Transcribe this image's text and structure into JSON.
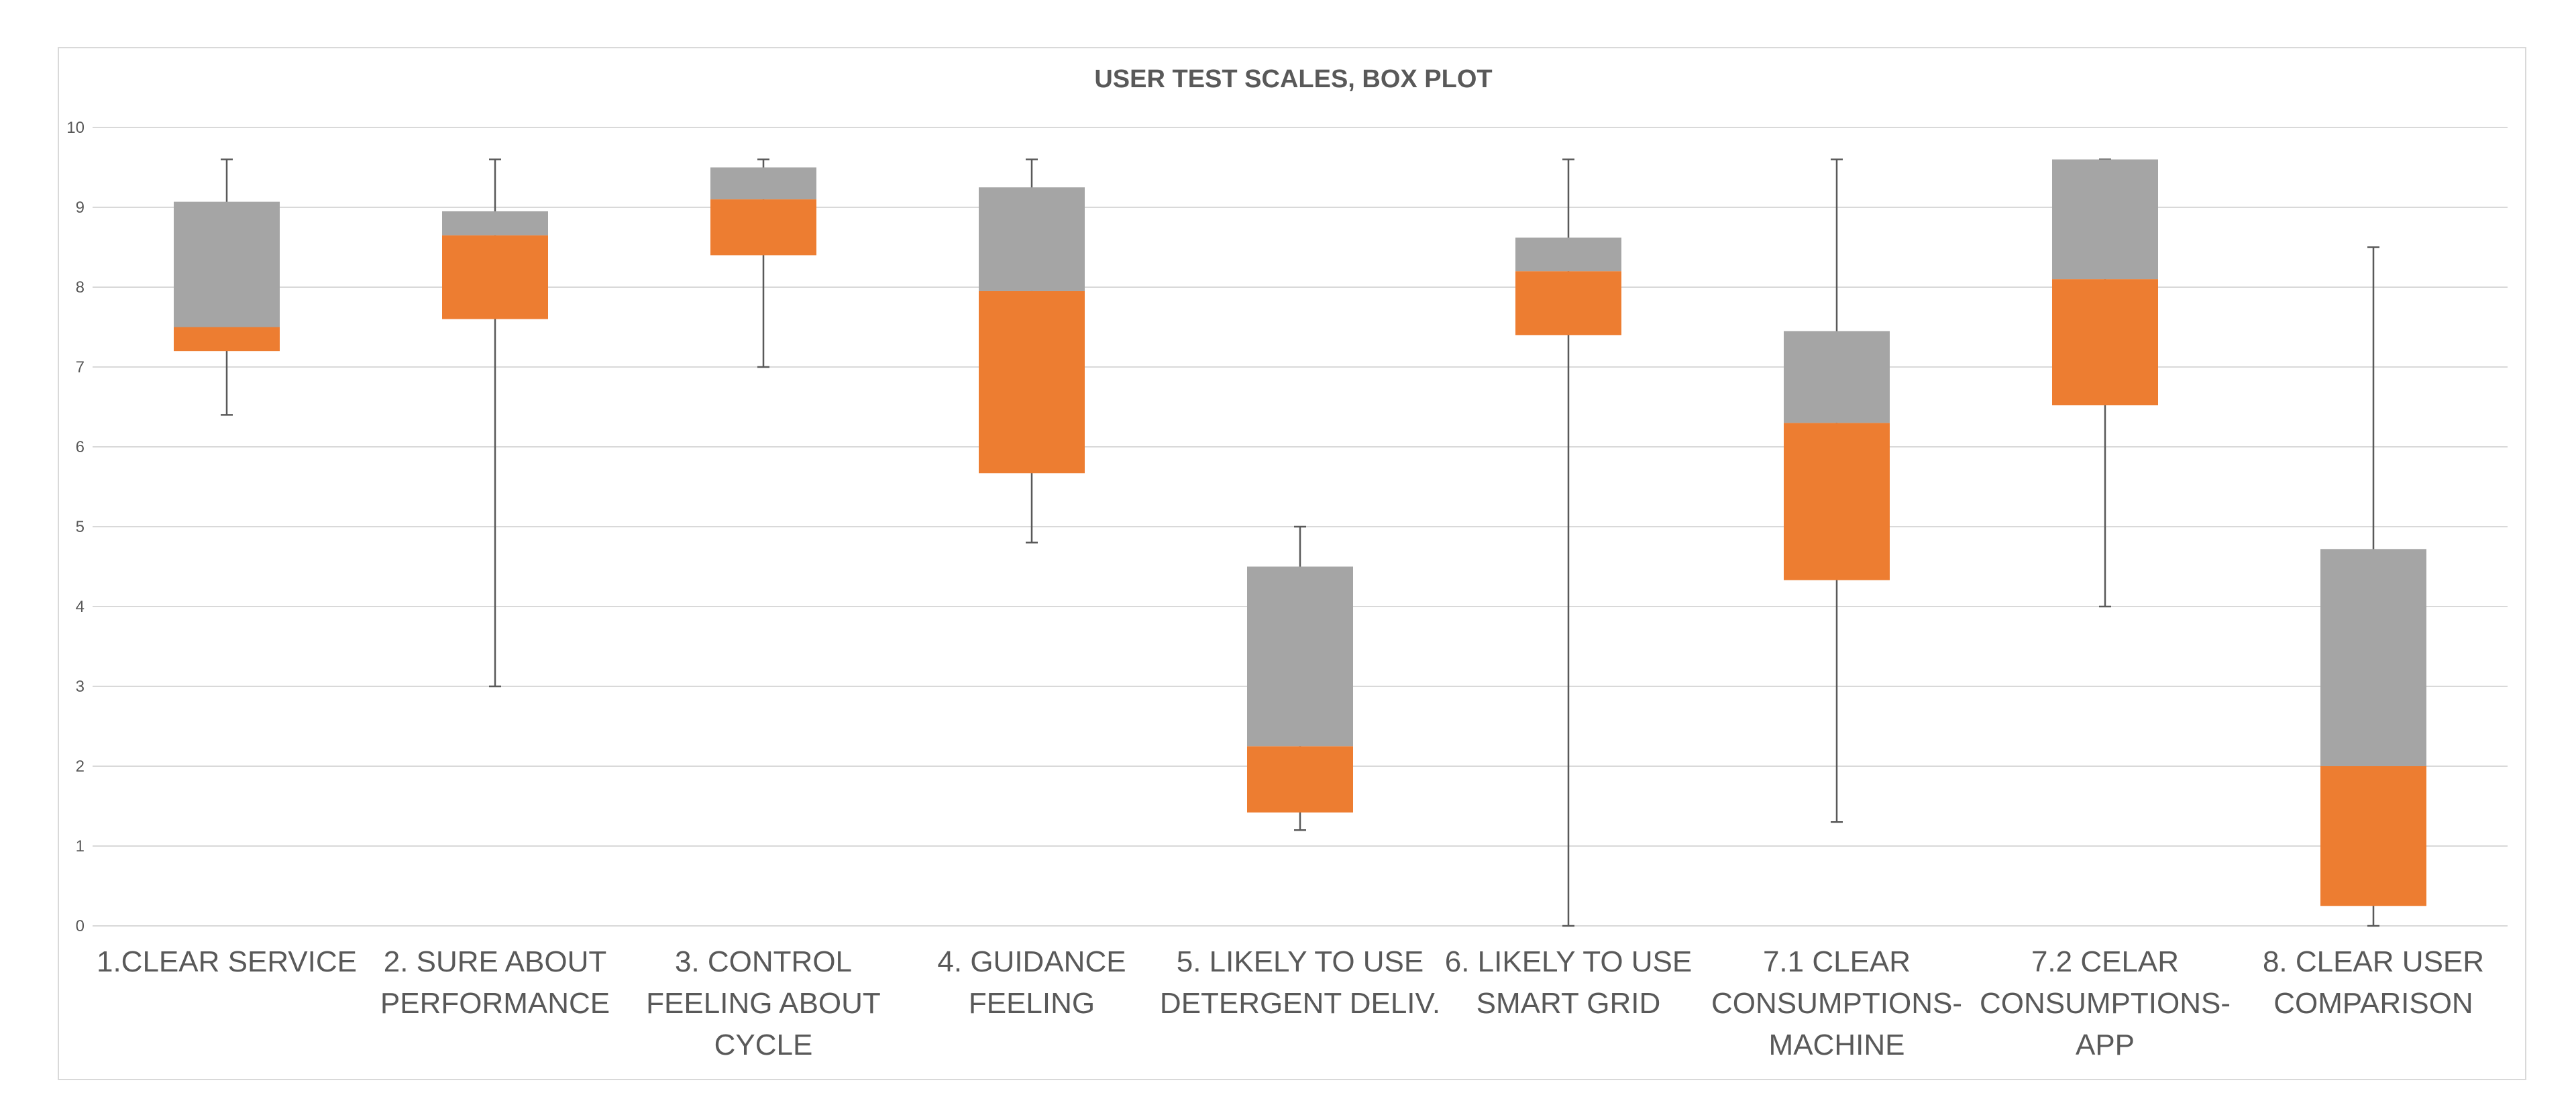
{
  "chart_data": {
    "type": "boxplot",
    "title": "USER TEST SCALES, BOX PLOT",
    "ylim": [
      0,
      10
    ],
    "yticks": [
      0,
      1,
      2,
      3,
      4,
      5,
      6,
      7,
      8,
      9,
      10
    ],
    "grid": true,
    "legend": "none",
    "colors": {
      "lower_box": "#ed7d31",
      "upper_box": "#a5a5a5",
      "whisker": "#595959",
      "grid": "#d9d9d9"
    },
    "categories": [
      [
        "1.CLEAR SERVICE"
      ],
      [
        "2. SURE ABOUT",
        "PERFORMANCE"
      ],
      [
        "3. CONTROL",
        "FEELING ABOUT",
        "CYCLE"
      ],
      [
        "4. GUIDANCE",
        "FEELING"
      ],
      [
        "5. LIKELY TO USE",
        "DETERGENT DELIV."
      ],
      [
        "6. LIKELY TO USE",
        "SMART GRID"
      ],
      [
        "7.1 CLEAR",
        "CONSUMPTIONS-",
        "MACHINE"
      ],
      [
        "7.2 CELAR",
        "CONSUMPTIONS-",
        "APP"
      ],
      [
        "8. CLEAR USER",
        "COMPARISON"
      ]
    ],
    "boxes": [
      {
        "min": 6.4,
        "q1": 7.2,
        "median": 7.5,
        "q3": 9.07,
        "max": 9.6
      },
      {
        "min": 3.0,
        "q1": 7.6,
        "median": 8.65,
        "q3": 8.95,
        "max": 9.6
      },
      {
        "min": 7.0,
        "q1": 8.4,
        "median": 9.1,
        "q3": 9.5,
        "max": 9.6
      },
      {
        "min": 4.8,
        "q1": 5.67,
        "median": 7.95,
        "q3": 9.25,
        "max": 9.6
      },
      {
        "min": 1.2,
        "q1": 1.42,
        "median": 2.25,
        "q3": 4.5,
        "max": 5.0
      },
      {
        "min": 0.0,
        "q1": 7.4,
        "median": 8.2,
        "q3": 8.62,
        "max": 9.6
      },
      {
        "min": 1.3,
        "q1": 4.33,
        "median": 6.3,
        "q3": 7.45,
        "max": 9.6
      },
      {
        "min": 4.0,
        "q1": 6.52,
        "median": 8.1,
        "q3": 9.6,
        "max": 9.6
      },
      {
        "min": 0.0,
        "q1": 0.25,
        "median": 2.0,
        "q3": 4.72,
        "max": 8.5
      }
    ]
  }
}
